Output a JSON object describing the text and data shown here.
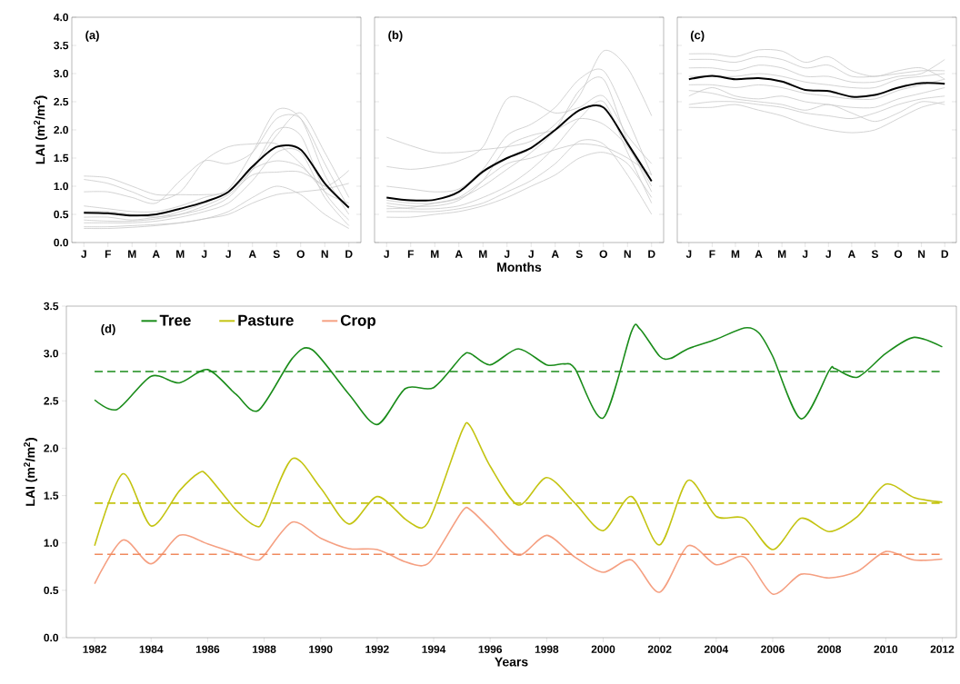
{
  "chart_data": [
    {
      "type": "line",
      "ylabel": "LAI (m$^{2}$/m$^{2}$)",
      "annotations": [
        "(a)"
      ],
      "categories": [
        "J",
        "F",
        "M",
        "A",
        "M",
        "J",
        "J",
        "A",
        "S",
        "O",
        "N",
        "D"
      ],
      "ylim": [
        0,
        4
      ],
      "yticks": [
        {
          "value": 0,
          "label": "0.0"
        },
        0.5,
        {
          "value": 1,
          "label": "1.0"
        },
        1.5,
        {
          "value": 2,
          "label": "2.0"
        },
        2.5,
        {
          "value": 3,
          "label": "3.0"
        },
        3.5,
        {
          "value": 4,
          "label": "4.0"
        }
      ],
      "series": [
        {
          "color": "#c8c8c8",
          "values": [
            1.18,
            1.15,
            1.0,
            0.85,
            0.85,
            0.85,
            0.9,
            1.3,
            1.9,
            2.3,
            1.6,
            0.8
          ]
        },
        {
          "color": "#c8c8c8",
          "values": [
            1.12,
            1.05,
            0.9,
            0.75,
            0.9,
            1.45,
            1.7,
            1.75,
            1.75,
            1.4,
            0.9,
            0.7
          ]
        },
        {
          "color": "#c8c8c8",
          "values": [
            0.9,
            0.9,
            0.8,
            0.7,
            1.1,
            1.45,
            1.4,
            1.6,
            2.2,
            2.2,
            1.4,
            0.6
          ]
        },
        {
          "color": "#c8c8c8",
          "values": [
            0.65,
            0.6,
            0.55,
            0.55,
            0.65,
            0.8,
            0.95,
            1.6,
            2.35,
            2.2,
            1.2,
            0.5
          ]
        },
        {
          "color": "#c8c8c8",
          "values": [
            0.45,
            0.45,
            0.4,
            0.45,
            0.5,
            0.6,
            0.8,
            1.3,
            2.0,
            1.9,
            0.9,
            0.4
          ]
        },
        {
          "color": "#c8c8c8",
          "values": [
            0.35,
            0.35,
            0.35,
            0.38,
            0.45,
            0.55,
            0.7,
            1.1,
            1.6,
            1.6,
            0.8,
            0.3
          ]
        },
        {
          "color": "#c8c8c8",
          "values": [
            0.28,
            0.28,
            0.3,
            0.32,
            0.35,
            0.42,
            0.55,
            0.8,
            1.0,
            0.85,
            0.5,
            0.25
          ]
        },
        {
          "color": "#c8c8c8",
          "values": [
            0.25,
            0.25,
            0.27,
            0.3,
            0.35,
            0.42,
            0.5,
            0.7,
            0.85,
            0.9,
            0.95,
            1.05
          ]
        },
        {
          "color": "#c8c8c8",
          "values": [
            0.55,
            0.55,
            0.5,
            0.45,
            0.55,
            0.7,
            0.9,
            1.3,
            1.45,
            1.35,
            1.0,
            1.28
          ]
        },
        {
          "color": "#c8c8c8",
          "values": [
            0.4,
            0.38,
            0.38,
            0.42,
            0.5,
            0.65,
            0.85,
            1.2,
            1.25,
            1.25,
            1.0,
            0.6
          ]
        },
        {
          "color": "#000000",
          "values": [
            0.53,
            0.52,
            0.48,
            0.5,
            0.6,
            0.72,
            0.9,
            1.35,
            1.7,
            1.65,
            1.05,
            0.62
          ]
        }
      ]
    },
    {
      "type": "line",
      "xlabel": "Months",
      "annotations": [
        "(b)"
      ],
      "categories": [
        "J",
        "F",
        "M",
        "A",
        "M",
        "J",
        "J",
        "A",
        "S",
        "O",
        "N",
        "D"
      ],
      "ylim": [
        0,
        4
      ],
      "yticks": [
        0.0,
        0.5,
        1.0,
        1.5,
        2.0,
        2.5,
        3.0,
        3.5,
        4.0
      ],
      "tick_labels": "x",
      "series": [
        {
          "color": "#c8c8c8",
          "values": [
            1.87,
            1.72,
            1.6,
            1.6,
            1.65,
            1.7,
            1.8,
            2.1,
            2.6,
            3.4,
            3.1,
            2.25
          ]
        },
        {
          "color": "#c8c8c8",
          "values": [
            1.35,
            1.3,
            1.35,
            1.45,
            1.7,
            2.55,
            2.5,
            2.3,
            2.4,
            2.6,
            1.9,
            1.4
          ]
        },
        {
          "color": "#c8c8c8",
          "values": [
            1.0,
            0.95,
            0.9,
            0.95,
            1.3,
            1.9,
            2.1,
            2.4,
            2.9,
            3.05,
            2.2,
            1.2
          ]
        },
        {
          "color": "#c8c8c8",
          "values": [
            0.75,
            0.7,
            0.7,
            0.78,
            1.0,
            1.3,
            1.6,
            2.0,
            2.7,
            2.9,
            1.8,
            0.9
          ]
        },
        {
          "color": "#c8c8c8",
          "values": [
            0.65,
            0.6,
            0.6,
            0.65,
            0.8,
            1.0,
            1.3,
            1.7,
            2.2,
            2.5,
            1.6,
            0.7
          ]
        },
        {
          "color": "#c8c8c8",
          "values": [
            0.55,
            0.55,
            0.55,
            0.6,
            0.7,
            0.9,
            1.1,
            1.4,
            1.8,
            1.75,
            1.2,
            0.5
          ]
        },
        {
          "color": "#c8c8c8",
          "values": [
            0.45,
            0.45,
            0.5,
            0.55,
            0.65,
            0.8,
            1.0,
            1.2,
            1.5,
            1.6,
            1.4,
            0.8
          ]
        },
        {
          "color": "#c8c8c8",
          "values": [
            0.6,
            0.62,
            0.7,
            0.8,
            1.1,
            1.4,
            1.5,
            1.65,
            1.75,
            1.7,
            1.5,
            1.2
          ]
        },
        {
          "color": "#c8c8c8",
          "values": [
            0.7,
            0.65,
            0.65,
            0.75,
            1.1,
            1.7,
            1.9,
            2.0,
            2.2,
            2.1,
            1.7,
            1.0
          ]
        },
        {
          "color": "#000000",
          "values": [
            0.8,
            0.75,
            0.76,
            0.9,
            1.26,
            1.5,
            1.68,
            2.0,
            2.35,
            2.4,
            1.76,
            1.09
          ]
        }
      ]
    },
    {
      "type": "line",
      "annotations": [
        "(c)"
      ],
      "categories": [
        "J",
        "F",
        "M",
        "A",
        "M",
        "J",
        "J",
        "A",
        "S",
        "O",
        "N",
        "D"
      ],
      "ylim": [
        0,
        4
      ],
      "yticks": [
        0.0,
        0.5,
        1.0,
        1.5,
        2.0,
        2.5,
        3.0,
        3.5,
        4.0
      ],
      "tick_labels": "x",
      "series": [
        {
          "color": "#c8c8c8",
          "values": [
            3.35,
            3.35,
            3.3,
            3.42,
            3.4,
            3.2,
            3.3,
            3.05,
            2.95,
            3.05,
            3.1,
            2.9
          ]
        },
        {
          "color": "#c8c8c8",
          "values": [
            3.25,
            3.25,
            3.2,
            3.3,
            3.25,
            3.1,
            3.15,
            2.95,
            2.95,
            3.0,
            3.05,
            3.05
          ]
        },
        {
          "color": "#c8c8c8",
          "values": [
            3.1,
            3.1,
            3.05,
            3.15,
            3.1,
            2.95,
            2.95,
            2.85,
            2.85,
            2.95,
            3.0,
            3.25
          ]
        },
        {
          "color": "#c8c8c8",
          "values": [
            2.95,
            2.95,
            2.95,
            3.0,
            2.95,
            2.85,
            2.8,
            2.75,
            2.75,
            2.9,
            2.95,
            3.0
          ]
        },
        {
          "color": "#c8c8c8",
          "values": [
            2.8,
            2.8,
            2.75,
            2.8,
            2.75,
            2.65,
            2.6,
            2.55,
            2.55,
            2.7,
            2.8,
            2.9
          ]
        },
        {
          "color": "#c8c8c8",
          "values": [
            2.6,
            2.75,
            2.6,
            2.55,
            2.6,
            2.5,
            2.45,
            2.4,
            2.4,
            2.55,
            2.65,
            2.75
          ]
        },
        {
          "color": "#c8c8c8",
          "values": [
            2.45,
            2.5,
            2.5,
            2.45,
            2.4,
            2.3,
            2.25,
            2.2,
            2.3,
            2.45,
            2.55,
            2.6
          ]
        },
        {
          "color": "#c8c8c8",
          "values": [
            2.4,
            2.4,
            2.45,
            2.35,
            2.25,
            2.1,
            2.0,
            1.95,
            2.0,
            2.2,
            2.4,
            2.5
          ]
        },
        {
          "color": "#c8c8c8",
          "values": [
            2.7,
            2.65,
            2.55,
            2.5,
            2.45,
            2.35,
            2.45,
            2.3,
            2.15,
            2.3,
            2.5,
            2.45
          ]
        },
        {
          "color": "#000000",
          "values": [
            2.9,
            2.96,
            2.9,
            2.92,
            2.86,
            2.71,
            2.69,
            2.59,
            2.62,
            2.75,
            2.83,
            2.82
          ]
        }
      ]
    },
    {
      "type": "line",
      "xlabel": "Years",
      "ylabel": "LAI (m$^{2}$/m$^{2}$)",
      "annotations": [
        "(d)"
      ],
      "legend": "top left",
      "xlim": [
        1981,
        2012.5
      ],
      "xticks": [
        1982,
        1984,
        1986,
        1988,
        1990,
        1992,
        1994,
        1996,
        1998,
        2000,
        2002,
        2004,
        2006,
        2008,
        2010,
        2012
      ],
      "ylim": [
        0,
        3.5
      ],
      "yticks": [
        {
          "value": 0,
          "label": "0.0"
        },
        0.5,
        {
          "value": 1,
          "label": "1.0"
        },
        1.5,
        {
          "value": 2,
          "label": "2.0"
        },
        2.5,
        {
          "value": 3,
          "label": "3.0"
        },
        3.5
      ],
      "series": [
        {
          "name": "Tree",
          "color": "#1a8c1a",
          "x": [
            1982,
            1982.8,
            1984,
            1985,
            1986,
            1987,
            1987.8,
            1989,
            1989.7,
            1991,
            1992,
            1993,
            1994,
            1995,
            1995.3,
            1996,
            1997,
            1998,
            1998.6,
            1999,
            2000,
            2001,
            2001.3,
            2002,
            2002.4,
            2003,
            2004,
            2005,
            2005.5,
            2006,
            2007,
            2008,
            2008.2,
            2009,
            2010,
            2011,
            2012
          ],
          "values": [
            2.51,
            2.41,
            2.76,
            2.69,
            2.83,
            2.57,
            2.4,
            2.95,
            3.04,
            2.57,
            2.25,
            2.63,
            2.64,
            2.97,
            3.0,
            2.88,
            3.05,
            2.88,
            2.89,
            2.84,
            2.32,
            3.23,
            3.26,
            2.97,
            2.95,
            3.05,
            3.15,
            3.27,
            3.22,
            2.97,
            2.31,
            2.82,
            2.84,
            2.75,
            3.0,
            3.17,
            3.07
          ]
        },
        {
          "name": "Pasture",
          "color": "#c4c412",
          "x": [
            1982,
            1983,
            1984,
            1985,
            1985.7,
            1986,
            1987,
            1987.7,
            1988,
            1989,
            1990,
            1991,
            1992,
            1993,
            1993.6,
            1994,
            1995,
            1995.3,
            1996,
            1997,
            1998,
            1999,
            2000,
            2001,
            2002,
            2003,
            2004,
            2005,
            2006,
            2007,
            2008,
            2009,
            2010,
            2011,
            2012
          ],
          "values": [
            0.97,
            1.73,
            1.18,
            1.55,
            1.74,
            1.71,
            1.35,
            1.18,
            1.25,
            1.89,
            1.58,
            1.2,
            1.49,
            1.25,
            1.16,
            1.35,
            2.18,
            2.23,
            1.81,
            1.4,
            1.69,
            1.42,
            1.13,
            1.49,
            0.98,
            1.66,
            1.28,
            1.26,
            0.93,
            1.26,
            1.12,
            1.28,
            1.62,
            1.48,
            1.43
          ]
        },
        {
          "name": "Crop",
          "color": "#f5a082",
          "x": [
            1982,
            1983,
            1984,
            1985,
            1986,
            1987,
            1987.7,
            1988,
            1989,
            1990,
            1991,
            1992,
            1993,
            1993.6,
            1994,
            1995,
            1995.3,
            1996,
            1997,
            1998,
            1999,
            2000,
            2001,
            2002,
            2003,
            2004,
            2005,
            2006,
            2007,
            2008,
            2009,
            2010,
            2011,
            2012
          ],
          "values": [
            0.57,
            1.03,
            0.78,
            1.08,
            0.99,
            0.89,
            0.82,
            0.87,
            1.22,
            1.05,
            0.94,
            0.93,
            0.8,
            0.76,
            0.85,
            1.33,
            1.35,
            1.15,
            0.87,
            1.08,
            0.85,
            0.69,
            0.82,
            0.48,
            0.97,
            0.77,
            0.85,
            0.46,
            0.67,
            0.63,
            0.7,
            0.91,
            0.82,
            0.83
          ]
        }
      ],
      "ref_lines": [
        {
          "axis": "y",
          "value": 2.81,
          "color": "#1a8c1a",
          "line_style": "dashed"
        },
        {
          "axis": "y",
          "value": 1.42,
          "color": "#c4c412",
          "line_style": "dashed"
        },
        {
          "axis": "y",
          "value": 0.88,
          "color": "#f08a5e",
          "line_style": "dashed"
        }
      ]
    }
  ]
}
